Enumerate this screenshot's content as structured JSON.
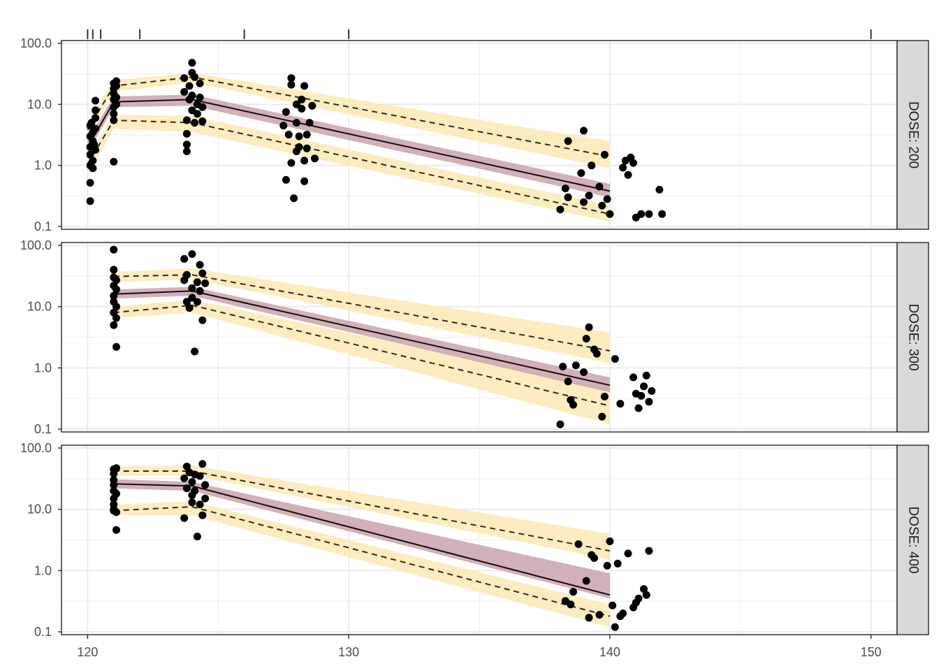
{
  "chart_data": {
    "type": "line",
    "subtype": "faceted visual predictive check (log scale) with observed points, median line and prediction-interval bands",
    "title": "",
    "xlabel": "",
    "ylabel": "",
    "x_range": [
      119,
      151
    ],
    "x_ticks": [
      120,
      130,
      140,
      150
    ],
    "x_tick_labels": [
      "120",
      "130",
      "140",
      "150"
    ],
    "y_scale": "log10",
    "y_range": [
      0.1,
      100
    ],
    "y_ticks": [
      0.1,
      1,
      10,
      100
    ],
    "y_tick_labels": [
      "0.1",
      "1.0",
      "10.0",
      "100.0"
    ],
    "grid": true,
    "legend": "none",
    "rug_top_x": [
      120,
      120.2,
      120.5,
      122,
      126,
      130,
      150
    ],
    "colors": {
      "points": "#000000",
      "median_band": "#c9a3aa",
      "pi_band": "#fde9b4",
      "median_line": "#1a0a10",
      "pi_line": "#2b2b1a",
      "strip": "#d9d9d9",
      "grid": "#ebebeb"
    },
    "panels": [
      {
        "strip": "DOSE: 200",
        "x": [
          120,
          121,
          124,
          140
        ],
        "median": [
          2.0,
          11.0,
          12.0,
          0.38
        ],
        "median_band_lo": [
          1.6,
          9.0,
          9.5,
          0.3
        ],
        "median_band_hi": [
          2.6,
          13.5,
          14.5,
          0.5
        ],
        "p05": [
          1.05,
          5.5,
          5.0,
          0.16
        ],
        "p05_band_lo": [
          0.7,
          4.0,
          3.5,
          0.12
        ],
        "p05_band_hi": [
          1.4,
          6.8,
          6.5,
          0.22
        ],
        "p95": [
          3.8,
          20.0,
          28.0,
          1.4
        ],
        "p95_band_lo": [
          3.0,
          16.0,
          23.0,
          0.9
        ],
        "p95_band_hi": [
          5.0,
          25.0,
          33.0,
          2.5
        ],
        "observed": [
          [
            120.1,
            1.0
          ],
          [
            120.1,
            1.5
          ],
          [
            120.1,
            2.0
          ],
          [
            120.1,
            3.0
          ],
          [
            120.1,
            4.5
          ],
          [
            120.1,
            0.52
          ],
          [
            120.1,
            0.26
          ],
          [
            120.2,
            2.5
          ],
          [
            120.2,
            3.5
          ],
          [
            120.2,
            1.2
          ],
          [
            120.2,
            0.9
          ],
          [
            120.3,
            6.0
          ],
          [
            120.3,
            8.0
          ],
          [
            120.3,
            11.5
          ],
          [
            120.3,
            1.8
          ],
          [
            120.3,
            4.0
          ],
          [
            120.15,
            5.0
          ],
          [
            120.25,
            2.2
          ],
          [
            121,
            1.15
          ],
          [
            121,
            5.5
          ],
          [
            121,
            7.0
          ],
          [
            121,
            9.0
          ],
          [
            121,
            12.0
          ],
          [
            121,
            15.0
          ],
          [
            121,
            18.0
          ],
          [
            121,
            22.0
          ],
          [
            121.1,
            10.0
          ],
          [
            121.1,
            13.0
          ],
          [
            121.1,
            20.0
          ],
          [
            121.1,
            24.0
          ],
          [
            123.7,
            16.0
          ],
          [
            123.7,
            27.0
          ],
          [
            123.8,
            5.5
          ],
          [
            123.8,
            1.7
          ],
          [
            123.8,
            2.2
          ],
          [
            123.8,
            3.3
          ],
          [
            123.9,
            12.0
          ],
          [
            123.9,
            20.0
          ],
          [
            124,
            48.0
          ],
          [
            124,
            33.0
          ],
          [
            124,
            8.0
          ],
          [
            124,
            14.0
          ],
          [
            124.1,
            28.0
          ],
          [
            124.1,
            5.0
          ],
          [
            124.2,
            10.0
          ],
          [
            124.2,
            7.0
          ],
          [
            124.3,
            22.0
          ],
          [
            124.3,
            13.0
          ],
          [
            124.4,
            5.3
          ],
          [
            124.4,
            9.0
          ],
          [
            127.5,
            4.5
          ],
          [
            127.6,
            7.5
          ],
          [
            127.6,
            0.58
          ],
          [
            127.7,
            3.2
          ],
          [
            127.8,
            21.0
          ],
          [
            127.8,
            27.0
          ],
          [
            127.8,
            1.1
          ],
          [
            127.9,
            0.29
          ],
          [
            128,
            10.0
          ],
          [
            128,
            5.0
          ],
          [
            128,
            1.7
          ],
          [
            128.1,
            2.0
          ],
          [
            128.1,
            3.0
          ],
          [
            128.2,
            12.0
          ],
          [
            128.2,
            8.5
          ],
          [
            128.3,
            0.55
          ],
          [
            128.3,
            20.0
          ],
          [
            128.3,
            1.2
          ],
          [
            128.4,
            1.9
          ],
          [
            128.4,
            3.2
          ],
          [
            128.5,
            5.0
          ],
          [
            128.6,
            9.5
          ],
          [
            128.7,
            1.3
          ],
          [
            138.1,
            0.19
          ],
          [
            138.3,
            0.42
          ],
          [
            138.4,
            0.3
          ],
          [
            138.4,
            2.5
          ],
          [
            138.9,
            0.75
          ],
          [
            139,
            3.7
          ],
          [
            139,
            0.25
          ],
          [
            139.2,
            0.32
          ],
          [
            139.3,
            1.0
          ],
          [
            139.6,
            0.45
          ],
          [
            139.7,
            0.22
          ],
          [
            139.8,
            1.5
          ],
          [
            139.9,
            0.28
          ],
          [
            140,
            0.16
          ],
          [
            140.5,
            0.92
          ],
          [
            140.6,
            1.2
          ],
          [
            140.7,
            0.7
          ],
          [
            140.8,
            1.35
          ],
          [
            140.9,
            1.1
          ],
          [
            141,
            0.14
          ],
          [
            141.2,
            0.16
          ],
          [
            141.5,
            0.16
          ],
          [
            141.9,
            0.4
          ],
          [
            142,
            0.16
          ]
        ]
      },
      {
        "strip": "DOSE: 300",
        "x": [
          121,
          124,
          140
        ],
        "median": [
          16.0,
          18.0,
          0.52
        ],
        "median_band_lo": [
          13.5,
          15.0,
          0.4
        ],
        "median_band_hi": [
          19.0,
          21.0,
          0.7
        ],
        "p05": [
          8.0,
          10.5,
          0.24
        ],
        "p05_band_lo": [
          6.5,
          8.0,
          0.12
        ],
        "p05_band_hi": [
          10.0,
          13.0,
          0.45
        ],
        "p95": [
          31.0,
          33.0,
          1.9
        ],
        "p95_band_lo": [
          25.0,
          28.0,
          1.2
        ],
        "p95_band_hi": [
          37.0,
          42.0,
          3.8
        ],
        "observed": [
          [
            121,
            85.0
          ],
          [
            121,
            40.0
          ],
          [
            121,
            30.0
          ],
          [
            121,
            22.0
          ],
          [
            121,
            15.0
          ],
          [
            121,
            12.0
          ],
          [
            121,
            8.0
          ],
          [
            121,
            5.0
          ],
          [
            121.1,
            2.2
          ],
          [
            121.1,
            27.0
          ],
          [
            121.1,
            19.0
          ],
          [
            121.1,
            10.0
          ],
          [
            121.1,
            6.5
          ],
          [
            123.7,
            60.0
          ],
          [
            123.7,
            27.0
          ],
          [
            123.8,
            12.0
          ],
          [
            123.8,
            33.0
          ],
          [
            123.9,
            9.5
          ],
          [
            124,
            72.0
          ],
          [
            124,
            20.0
          ],
          [
            124,
            14.0
          ],
          [
            124.1,
            1.85
          ],
          [
            124.2,
            25.0
          ],
          [
            124.2,
            12.0
          ],
          [
            124.3,
            48.0
          ],
          [
            124.3,
            18.0
          ],
          [
            124.4,
            35.0
          ],
          [
            124.4,
            6.0
          ],
          [
            124.5,
            24.0
          ],
          [
            138.1,
            0.12
          ],
          [
            138.2,
            1.05
          ],
          [
            138.4,
            0.6
          ],
          [
            138.5,
            0.3
          ],
          [
            138.6,
            0.25
          ],
          [
            138.7,
            1.1
          ],
          [
            139,
            0.85
          ],
          [
            139.1,
            3.0
          ],
          [
            139.2,
            4.6
          ],
          [
            139.4,
            2.0
          ],
          [
            139.5,
            1.7
          ],
          [
            139.7,
            0.16
          ],
          [
            139.8,
            0.34
          ],
          [
            140.2,
            1.4
          ],
          [
            140.4,
            0.26
          ],
          [
            140.9,
            0.7
          ],
          [
            141,
            0.38
          ],
          [
            141.1,
            0.22
          ],
          [
            141.2,
            0.35
          ],
          [
            141.3,
            0.5
          ],
          [
            141.4,
            0.75
          ],
          [
            141.5,
            0.28
          ],
          [
            141.6,
            0.42
          ]
        ]
      },
      {
        "strip": "DOSE: 400",
        "x": [
          121,
          124,
          140
        ],
        "median": [
          26.0,
          24.0,
          0.4
        ],
        "median_band_lo": [
          22.0,
          20.0,
          0.35
        ],
        "median_band_hi": [
          31.0,
          28.0,
          0.9
        ],
        "p05": [
          9.5,
          11.0,
          0.18
        ],
        "p05_band_lo": [
          8.0,
          8.0,
          0.12
        ],
        "p05_band_hi": [
          12.0,
          13.5,
          0.28
        ],
        "p95": [
          42.0,
          42.0,
          2.1
        ],
        "p95_band_lo": [
          35.0,
          36.0,
          1.5
        ],
        "p95_band_hi": [
          50.0,
          52.0,
          4.0
        ],
        "observed": [
          [
            121,
            45.0
          ],
          [
            121,
            38.0
          ],
          [
            121,
            30.0
          ],
          [
            121,
            25.0
          ],
          [
            121,
            20.0
          ],
          [
            121,
            15.0
          ],
          [
            121,
            12.0
          ],
          [
            121,
            10.0
          ],
          [
            121,
            9.5
          ],
          [
            121.1,
            47.0
          ],
          [
            121.1,
            4.6
          ],
          [
            121.1,
            18.0
          ],
          [
            121.1,
            9.0
          ],
          [
            123.7,
            7.2
          ],
          [
            123.7,
            32.0
          ],
          [
            123.8,
            50.0
          ],
          [
            123.8,
            22.0
          ],
          [
            123.9,
            40.0
          ],
          [
            124,
            13.0
          ],
          [
            124,
            17.0
          ],
          [
            124,
            28.0
          ],
          [
            124.1,
            37.0
          ],
          [
            124.1,
            20.0
          ],
          [
            124.2,
            3.6
          ],
          [
            124.3,
            35.0
          ],
          [
            124.3,
            12.0
          ],
          [
            124.4,
            8.0
          ],
          [
            124.4,
            55.0
          ],
          [
            124.5,
            25.0
          ],
          [
            124.5,
            15.0
          ],
          [
            138.3,
            0.32
          ],
          [
            138.5,
            0.28
          ],
          [
            138.6,
            0.45
          ],
          [
            138.8,
            2.7
          ],
          [
            139.1,
            0.68
          ],
          [
            139.2,
            0.17
          ],
          [
            139.3,
            1.8
          ],
          [
            139.4,
            1.6
          ],
          [
            139.6,
            0.19
          ],
          [
            139.9,
            1.2
          ],
          [
            140,
            3.0
          ],
          [
            140.1,
            0.27
          ],
          [
            140.2,
            0.12
          ],
          [
            140.3,
            1.3
          ],
          [
            140.4,
            0.18
          ],
          [
            140.5,
            0.2
          ],
          [
            140.7,
            1.9
          ],
          [
            140.9,
            0.25
          ],
          [
            141,
            0.3
          ],
          [
            141.1,
            0.35
          ],
          [
            141.3,
            0.5
          ],
          [
            141.4,
            0.4
          ],
          [
            141.5,
            2.1
          ]
        ]
      }
    ]
  }
}
